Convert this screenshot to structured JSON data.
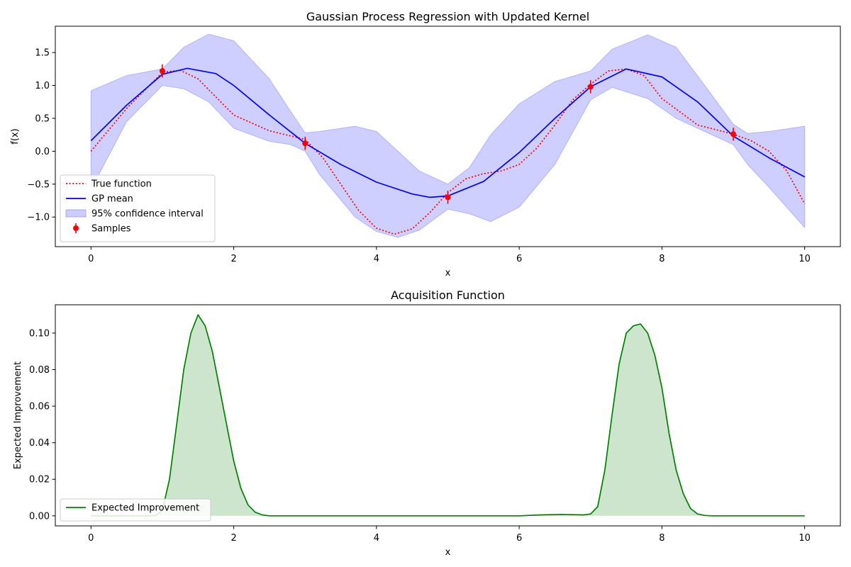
{
  "chart_data": [
    {
      "type": "line",
      "title": "Gaussian Process Regression with Updated Kernel",
      "xlabel": "x",
      "ylabel": "f(x)",
      "xlim": [
        -0.5,
        10.5
      ],
      "ylim": [
        -1.45,
        1.9
      ],
      "xticks": [
        0,
        2,
        4,
        6,
        8,
        10
      ],
      "xtick_labels": [
        "0",
        "2",
        "4",
        "6",
        "8",
        "10"
      ],
      "yticks": [
        -1.0,
        -0.5,
        0.0,
        0.5,
        1.0,
        1.5
      ],
      "ytick_labels": [
        "−1.0",
        "−0.5",
        "0.0",
        "0.5",
        "1.0",
        "1.5"
      ],
      "legend_position": "lower-left",
      "legend": [
        {
          "label": "True function",
          "style": "dotted",
          "color": "#ff0000"
        },
        {
          "label": "GP mean",
          "style": "solid",
          "color": "#0000ff"
        },
        {
          "label": "95% confidence interval",
          "style": "patch",
          "color": "#ccccff"
        },
        {
          "label": "Samples",
          "style": "errorbar",
          "color": "#ff0000"
        }
      ],
      "series": [
        {
          "name": "True function",
          "style": "dotted",
          "color": "#ff0000",
          "x": [
            0,
            0.5,
            1.0,
            1.25,
            1.5,
            2.0,
            2.5,
            3.0,
            3.25,
            3.5,
            3.75,
            4.0,
            4.25,
            4.5,
            4.75,
            5.0,
            5.25,
            5.5,
            5.75,
            6.0,
            6.25,
            6.5,
            6.75,
            7.0,
            7.25,
            7.5,
            7.75,
            8.0,
            8.5,
            9.0,
            9.25,
            9.5,
            9.75,
            10.0
          ],
          "y": [
            0.0,
            0.65,
            1.2,
            1.23,
            1.1,
            0.55,
            0.31,
            0.18,
            -0.1,
            -0.5,
            -0.9,
            -1.17,
            -1.26,
            -1.18,
            -0.93,
            -0.63,
            -0.42,
            -0.34,
            -0.3,
            -0.2,
            0.05,
            0.4,
            0.78,
            1.02,
            1.22,
            1.25,
            1.15,
            0.8,
            0.4,
            0.26,
            0.16,
            0.0,
            -0.3,
            -0.8
          ]
        },
        {
          "name": "GP mean",
          "style": "solid",
          "color": "#0000ff",
          "x": [
            0,
            0.5,
            1.0,
            1.35,
            1.75,
            2.0,
            2.5,
            3.0,
            3.5,
            4.0,
            4.5,
            4.75,
            5.0,
            5.5,
            6.0,
            6.5,
            7.0,
            7.5,
            8.0,
            8.5,
            9.0,
            9.5,
            10.0
          ],
          "y": [
            0.16,
            0.7,
            1.17,
            1.26,
            1.18,
            1.0,
            0.55,
            0.12,
            -0.2,
            -0.47,
            -0.65,
            -0.7,
            -0.68,
            -0.46,
            -0.02,
            0.5,
            0.98,
            1.25,
            1.13,
            0.75,
            0.23,
            -0.1,
            -0.39
          ]
        },
        {
          "name": "Samples",
          "style": "errorbar",
          "color": "#ff0000",
          "x": [
            1,
            3,
            5,
            7,
            9
          ],
          "y": [
            1.22,
            0.12,
            -0.7,
            0.98,
            0.26
          ],
          "yerr": [
            0.1,
            0.1,
            0.1,
            0.1,
            0.1
          ]
        }
      ],
      "confidence_interval": {
        "name": "95% confidence interval",
        "color": "#ccccff",
        "x": [
          0,
          0.5,
          1.0,
          1.3,
          1.65,
          2.0,
          2.5,
          2.8,
          3.0,
          3.2,
          3.7,
          4.0,
          4.3,
          4.6,
          5.0,
          5.3,
          5.6,
          6.0,
          6.5,
          7.0,
          7.3,
          7.8,
          8.2,
          8.6,
          9.0,
          9.2,
          9.5,
          10.0
        ],
        "upper": [
          0.92,
          1.15,
          1.25,
          1.58,
          1.78,
          1.68,
          1.1,
          0.6,
          0.28,
          0.3,
          0.38,
          0.3,
          0.0,
          -0.3,
          -0.5,
          -0.25,
          0.25,
          0.72,
          1.06,
          1.22,
          1.55,
          1.77,
          1.58,
          1.0,
          0.41,
          0.27,
          0.3,
          0.38
        ],
        "lower": [
          -0.58,
          0.45,
          1.0,
          0.95,
          0.75,
          0.35,
          0.15,
          0.1,
          0.0,
          -0.35,
          -1.0,
          -1.22,
          -1.31,
          -1.2,
          -0.88,
          -0.95,
          -1.07,
          -0.85,
          -0.2,
          0.78,
          0.97,
          0.8,
          0.5,
          0.3,
          0.1,
          -0.2,
          -0.55,
          -1.16
        ]
      }
    },
    {
      "type": "area",
      "title": "Acquisition Function",
      "xlabel": "x",
      "ylabel": "Expected Improvement",
      "xlim": [
        -0.5,
        10.5
      ],
      "ylim": [
        -0.0055,
        0.1155
      ],
      "xticks": [
        0,
        2,
        4,
        6,
        8,
        10
      ],
      "xtick_labels": [
        "0",
        "2",
        "4",
        "6",
        "8",
        "10"
      ],
      "yticks": [
        0.0,
        0.02,
        0.04,
        0.06,
        0.08,
        0.1
      ],
      "ytick_labels": [
        "0.00",
        "0.02",
        "0.04",
        "0.06",
        "0.08",
        "0.10"
      ],
      "legend_position": "lower-left",
      "legend": [
        {
          "label": "Expected Improvement",
          "style": "solid",
          "color": "#008000"
        }
      ],
      "series": [
        {
          "name": "Expected Improvement",
          "color": "#008000",
          "fill": "#cde5cd",
          "x": [
            0,
            0.9,
            1.0,
            1.1,
            1.2,
            1.3,
            1.4,
            1.5,
            1.6,
            1.7,
            1.8,
            1.9,
            2.0,
            2.1,
            2.2,
            2.3,
            2.4,
            2.5,
            3.0,
            4.0,
            5.0,
            6.0,
            6.3,
            6.6,
            6.9,
            7.0,
            7.1,
            7.2,
            7.3,
            7.4,
            7.5,
            7.6,
            7.7,
            7.8,
            7.9,
            8.0,
            8.1,
            8.2,
            8.3,
            8.4,
            8.5,
            8.6,
            8.7,
            9.0,
            10.0
          ],
          "y": [
            0,
            0,
            0.003,
            0.02,
            0.05,
            0.08,
            0.1,
            0.11,
            0.104,
            0.09,
            0.07,
            0.05,
            0.03,
            0.015,
            0.006,
            0.002,
            0.0005,
            0,
            0,
            0,
            0,
            0,
            0.0005,
            0.0008,
            0.0005,
            0.001,
            0.005,
            0.025,
            0.055,
            0.083,
            0.1,
            0.104,
            0.105,
            0.1,
            0.088,
            0.07,
            0.045,
            0.025,
            0.012,
            0.004,
            0.001,
            0.0002,
            0,
            0,
            0
          ]
        }
      ]
    }
  ]
}
